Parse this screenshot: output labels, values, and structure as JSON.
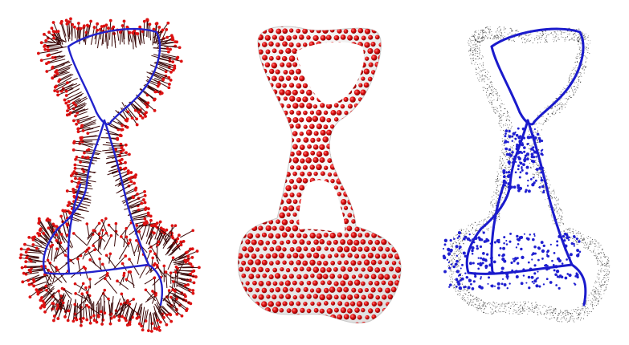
{
  "figure": {
    "panels": [
      {
        "name": "skeleton-with-normals",
        "skeleton_color": "#2222cc",
        "normal_line_color": "#3a0808",
        "point_color": "#dd1111"
      },
      {
        "name": "sphere-sampled-surface",
        "sphere_color": "#e01010",
        "surface_color": "#eeeeee"
      },
      {
        "name": "point-cloud-with-skeleton",
        "point_cloud_color": "#111111",
        "skeleton_color": "#1a1acc",
        "skeleton_point_color": "#1f1fd0"
      }
    ]
  }
}
